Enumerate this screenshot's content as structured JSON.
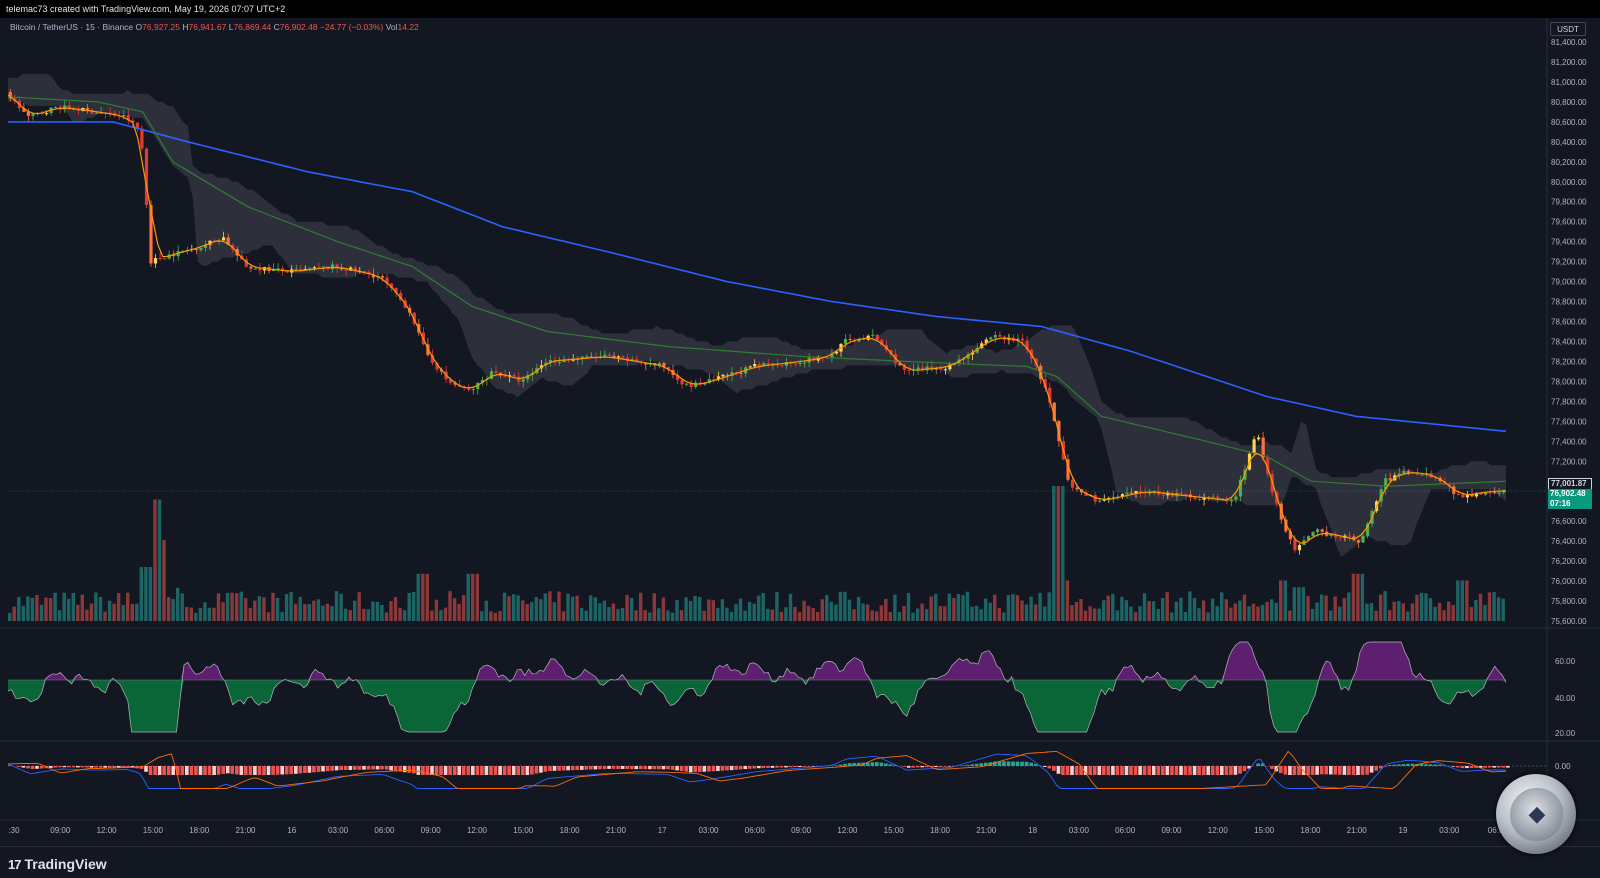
{
  "header": {
    "attribution": "telemac73 created with TradingView.com, May 19, 2026 07:07 UTC+2"
  },
  "legend": {
    "symbol": "Bitcoin / TetherUS · 15 · Binance",
    "o_label": "O",
    "o": "76,927.25",
    "h_label": "H",
    "h": "76,941.67",
    "l_label": "L",
    "l": "76,869.44",
    "c_label": "C",
    "c": "76,902.48",
    "change": "−24.77 (−0.03%)",
    "vol_label": "Vol",
    "vol": "14.22"
  },
  "colors": {
    "background": "#131722",
    "up": "#26a69a",
    "down": "#ef5350",
    "bull_candle": "#4caf50",
    "bear_candle": "#e53935",
    "yellow_candle": "#ffd54f",
    "ema_fast": "#ff9800",
    "ema_mid": "#2e7d32",
    "ema_slow": "#2962ff",
    "cloud": "#434651",
    "rsi_purple": "#9c27b0",
    "rsi_green": "#00c853"
  },
  "price_axis": {
    "unit": "USDT",
    "ticks": [
      "81,400.00",
      "81,200.00",
      "81,000.00",
      "80,800.00",
      "80,600.00",
      "80,400.00",
      "80,200.00",
      "80,000.00",
      "79,800.00",
      "79,600.00",
      "79,400.00",
      "79,200.00",
      "79,000.00",
      "78,800.00",
      "78,600.00",
      "78,400.00",
      "78,200.00",
      "78,000.00",
      "77,800.00",
      "77,600.00",
      "77,400.00",
      "77,200.00",
      "77,000.00",
      "76,800.00",
      "76,600.00",
      "76,400.00",
      "76,200.00",
      "76,000.00",
      "75,800.00",
      "75,600.00"
    ],
    "tag_ema": "77,001.87",
    "tag_last": "76,902.48",
    "tag_timer": "07:16"
  },
  "rsi_axis": {
    "ticks": [
      "60.00",
      "40.00",
      "20.00"
    ]
  },
  "macd_axis": {
    "ticks": [
      "0.00"
    ]
  },
  "time_axis": {
    "ticks": [
      ":30",
      "09:00",
      "12:00",
      "15:00",
      "18:00",
      "21:00",
      "16",
      "03:00",
      "06:00",
      "09:00",
      "12:00",
      "15:00",
      "18:00",
      "21:00",
      "17",
      "03:00",
      "06:00",
      "09:00",
      "12:00",
      "15:00",
      "18:00",
      "21:00",
      "18",
      "03:00",
      "06:00",
      "09:00",
      "12:00",
      "15:00",
      "18:00",
      "21:00",
      "19",
      "03:00",
      "06:0"
    ]
  },
  "brand": {
    "logo_text": "TradingView",
    "logo_mark": "17"
  },
  "chart_data": {
    "type": "candlestick",
    "symbol": "Bitcoin / TetherUS",
    "interval": "15",
    "exchange": "Binance",
    "ylim": [
      75600,
      81400
    ],
    "price_path": [
      [
        0,
        80900
      ],
      [
        0.015,
        80650
      ],
      [
        0.035,
        80750
      ],
      [
        0.06,
        80700
      ],
      [
        0.08,
        80650
      ],
      [
        0.09,
        80500
      ],
      [
        0.097,
        79200
      ],
      [
        0.105,
        79250
      ],
      [
        0.13,
        79350
      ],
      [
        0.145,
        79450
      ],
      [
        0.16,
        79150
      ],
      [
        0.19,
        79100
      ],
      [
        0.22,
        79150
      ],
      [
        0.25,
        79050
      ],
      [
        0.27,
        78700
      ],
      [
        0.28,
        78300
      ],
      [
        0.295,
        78000
      ],
      [
        0.31,
        77900
      ],
      [
        0.325,
        78100
      ],
      [
        0.345,
        78000
      ],
      [
        0.36,
        78200
      ],
      [
        0.4,
        78250
      ],
      [
        0.44,
        78150
      ],
      [
        0.455,
        77950
      ],
      [
        0.47,
        78000
      ],
      [
        0.5,
        78150
      ],
      [
        0.53,
        78200
      ],
      [
        0.55,
        78250
      ],
      [
        0.56,
        78400
      ],
      [
        0.58,
        78450
      ],
      [
        0.6,
        78100
      ],
      [
        0.63,
        78150
      ],
      [
        0.66,
        78450
      ],
      [
        0.68,
        78400
      ],
      [
        0.695,
        77900
      ],
      [
        0.71,
        76950
      ],
      [
        0.73,
        76800
      ],
      [
        0.76,
        76900
      ],
      [
        0.79,
        76850
      ],
      [
        0.82,
        76800
      ],
      [
        0.835,
        77500
      ],
      [
        0.845,
        76900
      ],
      [
        0.86,
        76300
      ],
      [
        0.875,
        76500
      ],
      [
        0.89,
        76450
      ],
      [
        0.905,
        76400
      ],
      [
        0.92,
        77000
      ],
      [
        0.935,
        77100
      ],
      [
        0.955,
        77050
      ],
      [
        0.97,
        76850
      ],
      [
        0.99,
        76900
      ],
      [
        1.0,
        76902
      ]
    ],
    "ema_mid_path": [
      [
        0,
        80850
      ],
      [
        0.06,
        80800
      ],
      [
        0.09,
        80700
      ],
      [
        0.11,
        80200
      ],
      [
        0.16,
        79750
      ],
      [
        0.22,
        79400
      ],
      [
        0.27,
        79150
      ],
      [
        0.31,
        78750
      ],
      [
        0.36,
        78500
      ],
      [
        0.44,
        78350
      ],
      [
        0.53,
        78250
      ],
      [
        0.6,
        78200
      ],
      [
        0.68,
        78150
      ],
      [
        0.7,
        78050
      ],
      [
        0.73,
        77650
      ],
      [
        0.8,
        77400
      ],
      [
        0.84,
        77250
      ],
      [
        0.87,
        77000
      ],
      [
        0.92,
        76950
      ],
      [
        0.97,
        76980
      ],
      [
        1.0,
        77000
      ]
    ],
    "ema_slow_path": [
      [
        0,
        80600
      ],
      [
        0.07,
        80600
      ],
      [
        0.12,
        80400
      ],
      [
        0.2,
        80100
      ],
      [
        0.27,
        79900
      ],
      [
        0.33,
        79550
      ],
      [
        0.4,
        79300
      ],
      [
        0.48,
        79000
      ],
      [
        0.55,
        78800
      ],
      [
        0.62,
        78650
      ],
      [
        0.69,
        78550
      ],
      [
        0.75,
        78300
      ],
      [
        0.8,
        78050
      ],
      [
        0.84,
        77850
      ],
      [
        0.9,
        77650
      ],
      [
        1.0,
        77500
      ]
    ],
    "rsi_axis_levels": [
      60,
      40,
      20
    ],
    "macd_zero": 0,
    "volume_spikes": [
      [
        0.098,
        0.9
      ],
      [
        0.102,
        0.6
      ],
      [
        0.09,
        0.4
      ],
      [
        0.275,
        0.35
      ],
      [
        0.31,
        0.35
      ],
      [
        0.7,
        1.0
      ],
      [
        0.705,
        0.3
      ],
      [
        0.85,
        0.3
      ],
      [
        0.86,
        0.25
      ],
      [
        0.9,
        0.35
      ],
      [
        0.97,
        0.3
      ]
    ]
  }
}
